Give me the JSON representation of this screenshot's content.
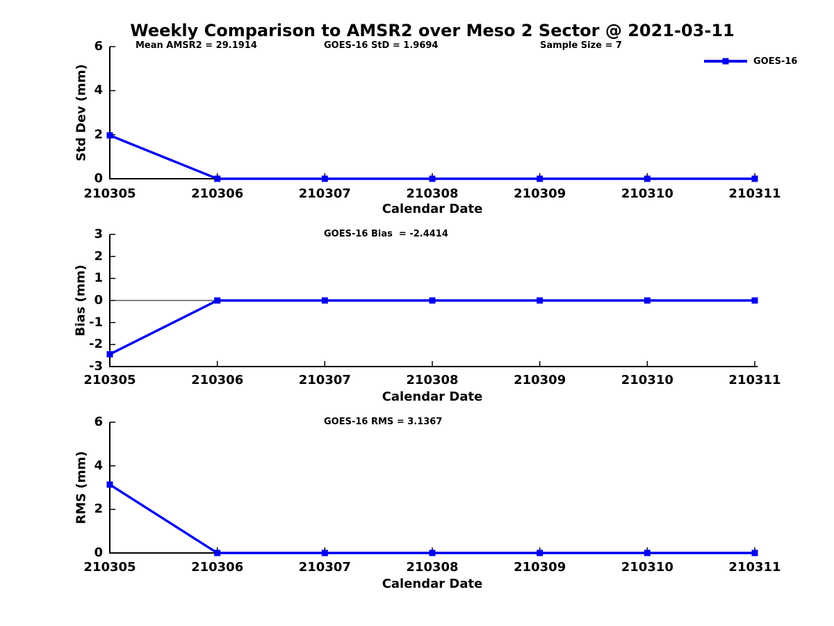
{
  "page": {
    "title": "Weekly Comparison to AMSR2 over Meso 2 Sector @ 2021-03-11",
    "background": "#ffffff",
    "accent_blue": "#0000ee",
    "axis_color": "#000000"
  },
  "legend": {
    "label": "GOES-16"
  },
  "chart_data": [
    {
      "type": "line",
      "panel": "std-dev",
      "headers": [
        "Mean AMSR2 = 29.1914",
        "GOES-16 StD = 1.9694",
        "Sample Size = 7"
      ],
      "ylabel": "Std Dev (mm)",
      "xlabel": "Calendar Date",
      "categories": [
        "210305",
        "210306",
        "210307",
        "210308",
        "210309",
        "210310",
        "210311"
      ],
      "series": [
        {
          "name": "GOES-16",
          "color": "#0000ee",
          "values": [
            1.9694,
            0,
            0,
            0,
            0,
            0,
            0
          ]
        }
      ],
      "ylim": [
        0,
        6
      ],
      "yticks": [
        0,
        2,
        4,
        6
      ],
      "zero_line": false,
      "grid": false,
      "legend_position": "top-right"
    },
    {
      "type": "line",
      "panel": "bias",
      "headers": [
        "GOES-16 Bias  = -2.4414"
      ],
      "ylabel": "Bias (mm)",
      "xlabel": "Calendar Date",
      "categories": [
        "210305",
        "210306",
        "210307",
        "210308",
        "210309",
        "210310",
        "210311"
      ],
      "series": [
        {
          "name": "GOES-16",
          "color": "#0000ee",
          "values": [
            -2.4414,
            0,
            0,
            0,
            0,
            0,
            0
          ]
        }
      ],
      "ylim": [
        -3,
        3
      ],
      "yticks": [
        -3,
        -2,
        -1,
        0,
        1,
        2,
        3
      ],
      "zero_line": true,
      "grid": false,
      "legend_position": "none"
    },
    {
      "type": "line",
      "panel": "rms",
      "headers": [
        "GOES-16 RMS = 3.1367"
      ],
      "ylabel": "RMS (mm)",
      "xlabel": "Calendar Date",
      "categories": [
        "210305",
        "210306",
        "210307",
        "210308",
        "210309",
        "210310",
        "210311"
      ],
      "series": [
        {
          "name": "GOES-16",
          "color": "#0000ee",
          "values": [
            3.1367,
            0,
            0,
            0,
            0,
            0,
            0
          ]
        }
      ],
      "ylim": [
        0,
        6
      ],
      "yticks": [
        0,
        2,
        4,
        6
      ],
      "zero_line": false,
      "grid": false,
      "legend_position": "none"
    }
  ]
}
